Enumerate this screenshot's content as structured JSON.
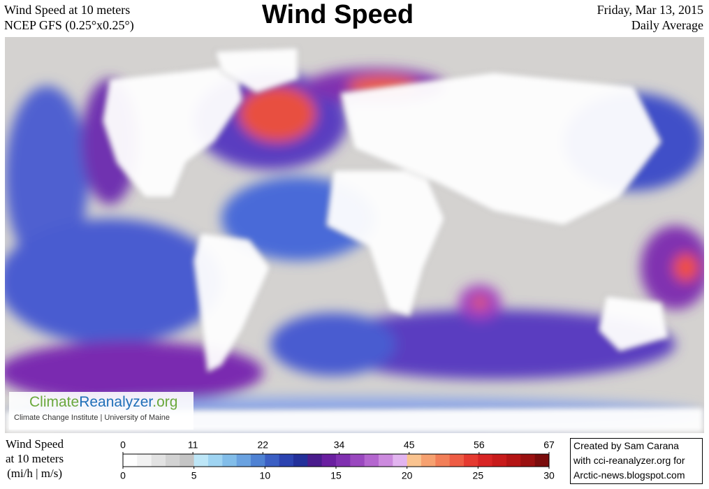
{
  "header": {
    "left": [
      "Wind Speed at 10 meters",
      "NCEP GFS (0.25°x0.25°)"
    ],
    "title": "Wind Speed",
    "right": [
      "Friday, Mar 13, 2015",
      "Daily Average"
    ]
  },
  "logo": {
    "parts": [
      "Climate",
      "Reanalyzer",
      ".org"
    ],
    "subtitle": "Climate Change Institute | University of Maine"
  },
  "legend": {
    "label": [
      "Wind Speed",
      "at 10 meters",
      "(mi/h | m/s)"
    ],
    "mph_lim": [
      0,
      67
    ],
    "mph_ticks": [
      0,
      11,
      22,
      34,
      45,
      56,
      67
    ],
    "ms_lim": [
      0,
      30
    ],
    "ms_ticks": [
      0,
      5,
      10,
      15,
      20,
      25,
      30
    ],
    "colors": [
      "#ffffff",
      "#f2f2f2",
      "#e2e2e2",
      "#d2d2d2",
      "#c4c4c4",
      "#bde6f7",
      "#9fd4f2",
      "#82bde9",
      "#6aa2e0",
      "#4f82d3",
      "#3b5fc4",
      "#2c43b0",
      "#23309a",
      "#4a1c8c",
      "#6a1fa0",
      "#8030b0",
      "#9a48bf",
      "#b466cf",
      "#cc8ade",
      "#e2b4ef",
      "#f9c38f",
      "#f6a170",
      "#f27f58",
      "#ee5c44",
      "#e53a30",
      "#d82424",
      "#c81b1b",
      "#b41414",
      "#9a1010",
      "#7a0c0c"
    ]
  },
  "credit": [
    "Created by Sam Carana",
    "with cci-reanalyzer.org for",
    "Arctic-news.blogspot.com"
  ]
}
